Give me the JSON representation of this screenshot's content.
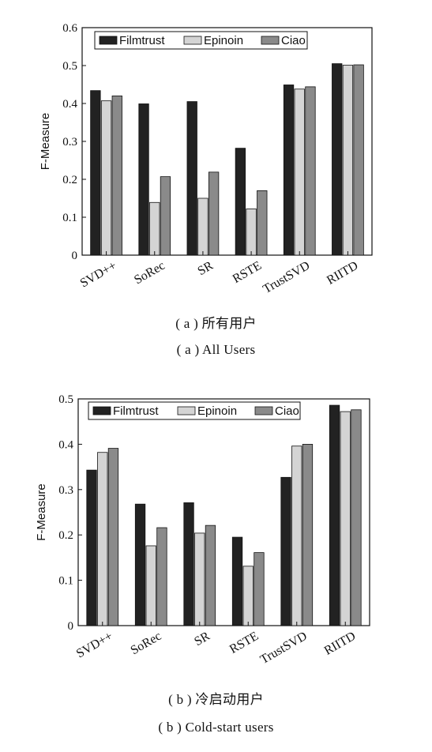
{
  "chart_data": [
    {
      "type": "bar",
      "ylabel": "F-Measure",
      "xlabel": "",
      "ylim": [
        0,
        0.6
      ],
      "yticks": [
        "0",
        "0.1",
        "0.2",
        "0.3",
        "0.4",
        "0.5",
        "0.6"
      ],
      "categories": [
        "SVD++",
        "SoRec",
        "SR",
        "RSTE",
        "TrustSVD",
        "RIITD"
      ],
      "series": [
        {
          "name": "Filmtrust",
          "color": "#222222",
          "values": [
            0.434,
            0.399,
            0.405,
            0.282,
            0.449,
            0.505
          ]
        },
        {
          "name": "Epinoin",
          "color": "#d4d4d4",
          "values": [
            0.407,
            0.139,
            0.15,
            0.122,
            0.438,
            0.501
          ]
        },
        {
          "name": "Ciao",
          "color": "#8a8a8a",
          "values": [
            0.42,
            0.207,
            0.219,
            0.17,
            0.444,
            0.502
          ]
        }
      ],
      "legend_position": "top",
      "grid": false,
      "caption_cn": "( a ) 所有用户",
      "caption_en": "( a ) All Users"
    },
    {
      "type": "bar",
      "ylabel": "F-Measure",
      "xlabel": "",
      "ylim": [
        0,
        0.5
      ],
      "yticks": [
        "0",
        "0.1",
        "0.2",
        "0.3",
        "0.4",
        "0.5"
      ],
      "categories": [
        "SVD++",
        "SoRec",
        "SR",
        "RSTE",
        "TrustSVD",
        "RIITD"
      ],
      "series": [
        {
          "name": "Filmtrust",
          "color": "#222222",
          "values": [
            0.343,
            0.268,
            0.271,
            0.195,
            0.327,
            0.486
          ]
        },
        {
          "name": "Epinoin",
          "color": "#d4d4d4",
          "values": [
            0.382,
            0.176,
            0.204,
            0.131,
            0.396,
            0.472
          ]
        },
        {
          "name": "Ciao",
          "color": "#8a8a8a",
          "values": [
            0.391,
            0.216,
            0.221,
            0.161,
            0.4,
            0.476
          ]
        }
      ],
      "legend_position": "top",
      "grid": false,
      "caption_cn": "( b ) 冷启动用户",
      "caption_en": "( b ) Cold-start users"
    }
  ]
}
